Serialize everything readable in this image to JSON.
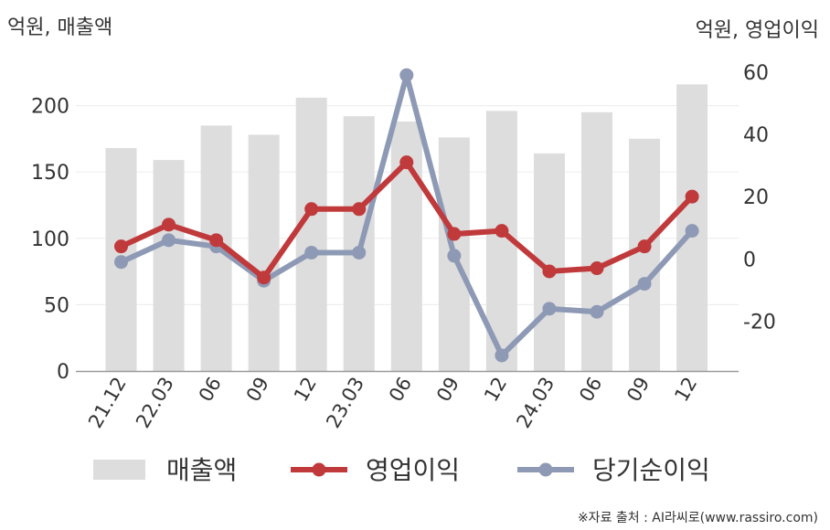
{
  "chart_data": {
    "type": "bar+line",
    "left_unit": "억원, 매출액",
    "right_unit": "억원, 영업이익",
    "source": "※자료 출처 : AI라씨로(www.rassiro.com)",
    "categories": [
      "21.12",
      "22.03",
      "06",
      "09",
      "12",
      "23.03",
      "06",
      "09",
      "12",
      "24.03",
      "06",
      "09",
      "12"
    ],
    "left_axis": {
      "ylim": [
        0,
        230
      ],
      "ticks": [
        0,
        50,
        100,
        150,
        200
      ]
    },
    "right_axis": {
      "ylim": [
        -36,
        62
      ],
      "ticks": [
        -20,
        0,
        20,
        40,
        60
      ]
    },
    "series": [
      {
        "name": "매출액",
        "type": "bar",
        "axis": "left",
        "color": "#dddddd",
        "values": [
          168,
          159,
          185,
          178,
          206,
          192,
          188,
          176,
          196,
          164,
          195,
          175,
          216
        ]
      },
      {
        "name": "영업이익",
        "type": "line",
        "axis": "right",
        "color": "#c0393b",
        "values": [
          4,
          11,
          6,
          -6,
          16,
          16,
          31,
          8,
          9,
          -4,
          -3,
          4,
          20
        ]
      },
      {
        "name": "당기순이익",
        "type": "line",
        "axis": "right",
        "color": "#8e9ab5",
        "values": [
          -1,
          6,
          4,
          -7,
          2,
          2,
          59,
          1,
          -31,
          -16,
          -17,
          -8,
          9
        ]
      }
    ],
    "grid": true,
    "legend_position": "bottom"
  }
}
